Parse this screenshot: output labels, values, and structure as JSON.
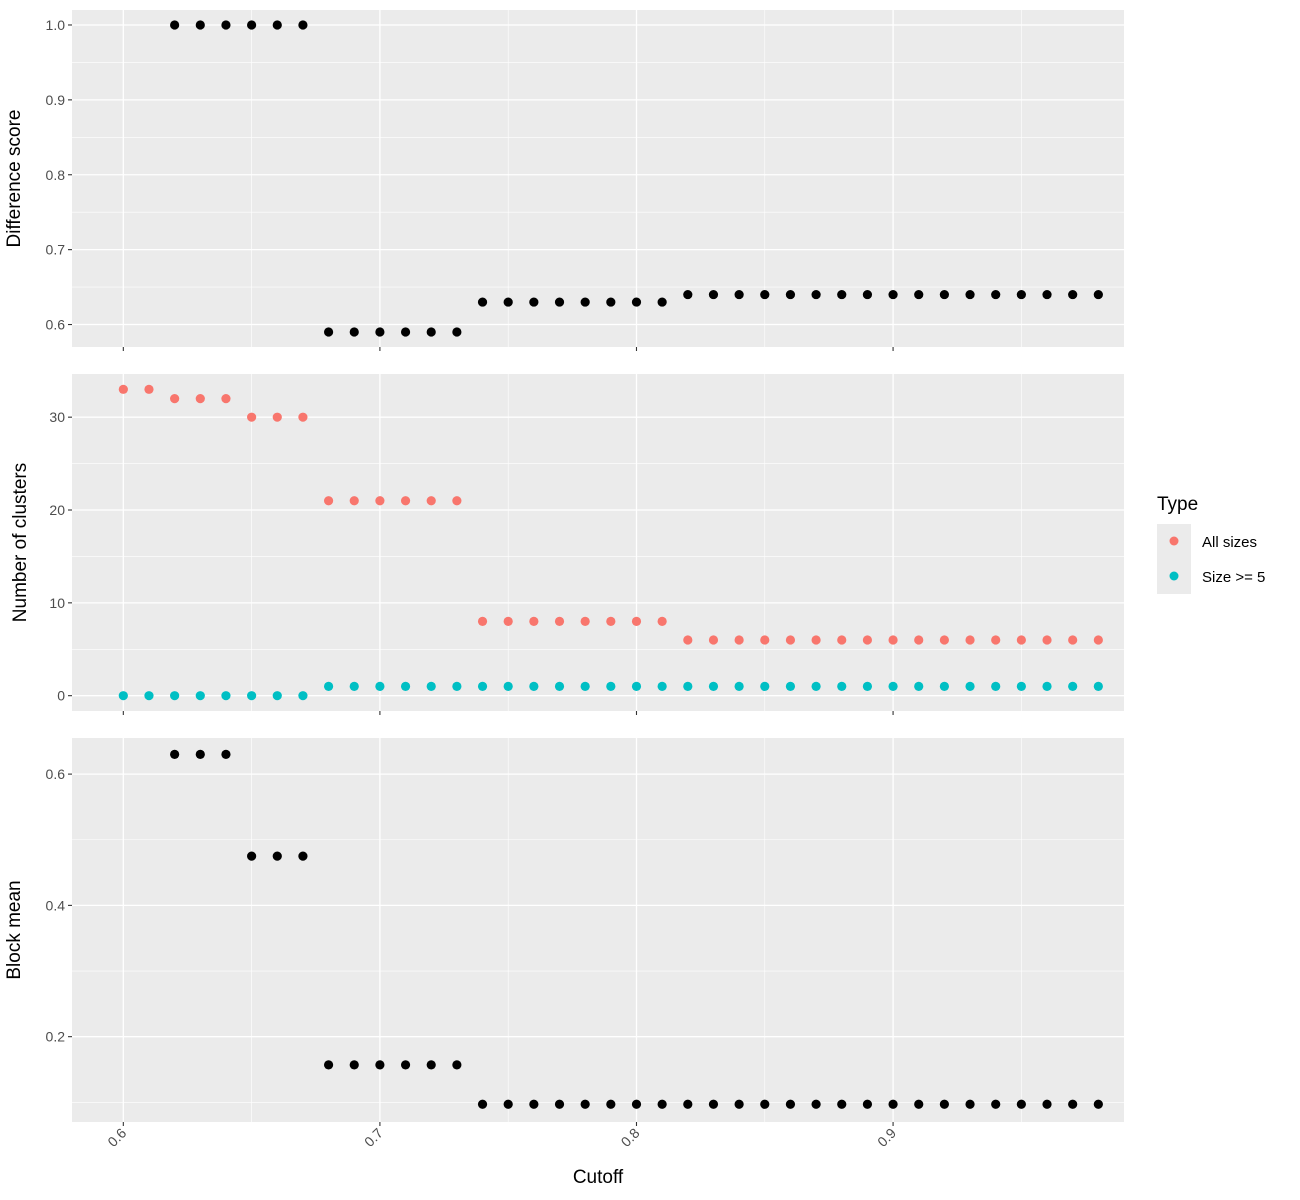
{
  "chart_data": {
    "type": "scatter",
    "x_label": "Cutoff",
    "x_range": [
      0.58,
      0.99
    ],
    "x_ticks": [
      "0.6",
      "0.7",
      "0.8",
      "0.9"
    ],
    "x_tick_values": [
      0.6,
      0.7,
      0.8,
      0.9
    ],
    "x": [
      0.6,
      0.61,
      0.62,
      0.63,
      0.64,
      0.65,
      0.66,
      0.67,
      0.68,
      0.69,
      0.7,
      0.71,
      0.72,
      0.73,
      0.74,
      0.75,
      0.76,
      0.77,
      0.78,
      0.79,
      0.8,
      0.81,
      0.82,
      0.83,
      0.84,
      0.85,
      0.86,
      0.87,
      0.88,
      0.89,
      0.9,
      0.91,
      0.92,
      0.93,
      0.94,
      0.95,
      0.96,
      0.97,
      0.98
    ],
    "grid": true,
    "panels": [
      {
        "ylabel": "Difference score",
        "ylim": [
          0.57,
          1.02
        ],
        "y_ticks": [
          "0.6",
          "0.7",
          "0.8",
          "0.9",
          "1.0"
        ],
        "y_tick_values": [
          0.6,
          0.7,
          0.8,
          0.9,
          1.0
        ],
        "series": [
          {
            "color": "#000000",
            "values": [
              null,
              null,
              1.0,
              1.0,
              1.0,
              1.0,
              1.0,
              1.0,
              0.59,
              0.59,
              0.59,
              0.59,
              0.59,
              0.59,
              0.63,
              0.63,
              0.63,
              0.63,
              0.63,
              0.63,
              0.63,
              0.63,
              0.64,
              0.64,
              0.64,
              0.64,
              0.64,
              0.64,
              0.64,
              0.64,
              0.64,
              0.64,
              0.64,
              0.64,
              0.64,
              0.64,
              0.64,
              0.64,
              0.64
            ]
          }
        ]
      },
      {
        "ylabel": "Number of clusters",
        "ylim": [
          -1.65,
          34.65
        ],
        "y_ticks": [
          "0",
          "10",
          "20",
          "30"
        ],
        "y_tick_values": [
          0,
          10,
          20,
          30
        ],
        "series": [
          {
            "name": "All sizes",
            "color": "#F8766D",
            "values": [
              33,
              33,
              32,
              32,
              32,
              30,
              30,
              30,
              21,
              21,
              21,
              21,
              21,
              21,
              8,
              8,
              8,
              8,
              8,
              8,
              8,
              8,
              6,
              6,
              6,
              6,
              6,
              6,
              6,
              6,
              6,
              6,
              6,
              6,
              6,
              6,
              6,
              6,
              6
            ]
          },
          {
            "name": "Size >= 5",
            "color": "#00BFC4",
            "values": [
              0,
              0,
              0,
              0,
              0,
              0,
              0,
              0,
              1,
              1,
              1,
              1,
              1,
              1,
              1,
              1,
              1,
              1,
              1,
              1,
              1,
              1,
              1,
              1,
              1,
              1,
              1,
              1,
              1,
              1,
              1,
              1,
              1,
              1,
              1,
              1,
              1,
              1,
              1
            ]
          }
        ]
      },
      {
        "ylabel": "Block mean",
        "ylim": [
          0.07,
          0.655
        ],
        "y_ticks": [
          "0.2",
          "0.4",
          "0.6"
        ],
        "y_tick_values": [
          0.2,
          0.4,
          0.6
        ],
        "series": [
          {
            "color": "#000000",
            "values": [
              null,
              null,
              0.63,
              0.63,
              0.63,
              0.475,
              0.475,
              0.475,
              0.157,
              0.157,
              0.157,
              0.157,
              0.157,
              0.157,
              0.097,
              0.097,
              0.097,
              0.097,
              0.097,
              0.097,
              0.097,
              0.097,
              0.097,
              0.097,
              0.097,
              0.097,
              0.097,
              0.097,
              0.097,
              0.097,
              0.097,
              0.097,
              0.097,
              0.097,
              0.097,
              0.097,
              0.097,
              0.097,
              0.097
            ]
          }
        ]
      }
    ],
    "legend": {
      "title": "Type",
      "position": "right",
      "entries": [
        {
          "label": "All sizes",
          "color": "#F8766D"
        },
        {
          "label": "Size >= 5",
          "color": "#00BFC4"
        }
      ]
    }
  }
}
